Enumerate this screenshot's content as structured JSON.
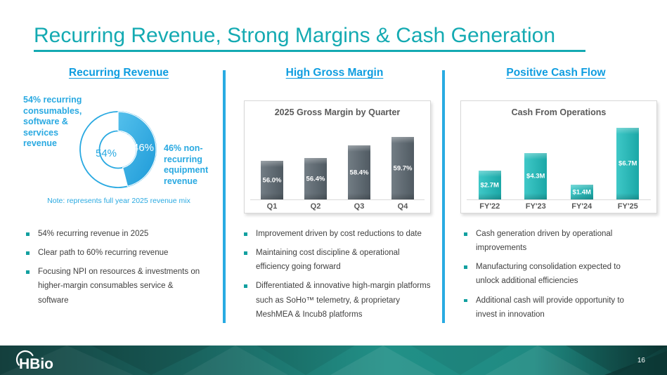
{
  "slide": {
    "title": "Recurring Revenue, Strong Margins & Cash Generation",
    "page_number": "16",
    "logo_text": "HBio"
  },
  "colors": {
    "title_teal": "#14aab2",
    "heading_blue": "#0f9de0",
    "donut_blue": "#29a9e1",
    "slate_bar": "#5b6770",
    "teal_bar": "#1fbfbe",
    "bullet_marker": "#12a0a0",
    "body_text": "#3f3f3f",
    "chart_text": "#595959",
    "divider_blue": "#29abe2"
  },
  "columns": [
    {
      "heading": "Recurring Revenue",
      "bullets": [
        "54% recurring revenue in 2025",
        "Clear path to 60% recurring revenue",
        "Focusing NPI on resources & investments on higher-margin consumables service & software"
      ]
    },
    {
      "heading": "High Gross Margin",
      "bullets": [
        "Improvement driven by cost reductions to date",
        "Maintaining cost discipline & operational efficiency going forward",
        "Differentiated & innovative high-margin platforms such as SoHo™ telemetry, & proprietary MeshMEA & Incub8 platforms"
      ]
    },
    {
      "heading": "Positive Cash Flow",
      "bullets": [
        "Cash generation driven by operational improvements",
        "Manufacturing consolidation expected to unlock additional efficiencies",
        "Additional cash will provide opportunity to invest in innovation"
      ]
    }
  ],
  "chart_data": [
    {
      "type": "pie",
      "subtype": "donut",
      "slices": [
        {
          "value": 46,
          "pct_label": "46%",
          "label": "46% non-recurring equipment revenue",
          "color": "#29a9e1"
        },
        {
          "value": 54,
          "pct_label": "54%",
          "label": "54% recurring consumables, software & services revenue",
          "color": "#ffffff"
        }
      ],
      "note": "Note: represents full year 2025 revenue mix",
      "legend": false
    },
    {
      "type": "bar",
      "title": "2025 Gross Margin by Quarter",
      "categories": [
        "Q1",
        "Q2",
        "Q3",
        "Q4"
      ],
      "values": [
        56.0,
        56.4,
        58.4,
        59.7
      ],
      "value_labels": [
        "56.0%",
        "56.4%",
        "58.4%",
        "59.7%"
      ],
      "xlabel": "",
      "ylabel": "",
      "ylim": [
        50,
        62
      ],
      "bar_color": "#5b6770",
      "grid": false,
      "legend": false
    },
    {
      "type": "bar",
      "title": "Cash From Operations",
      "categories": [
        "FY'22",
        "FY'23",
        "FY'24",
        "FY'25"
      ],
      "values": [
        2.7,
        4.3,
        1.4,
        6.7
      ],
      "value_labels": [
        "$2.7M",
        "$4.3M",
        "$1.4M",
        "$6.7M"
      ],
      "xlabel": "",
      "ylabel": "",
      "ylim": [
        0,
        7.2
      ],
      "bar_color": "#1fbfbe",
      "grid": false,
      "legend": false
    }
  ]
}
